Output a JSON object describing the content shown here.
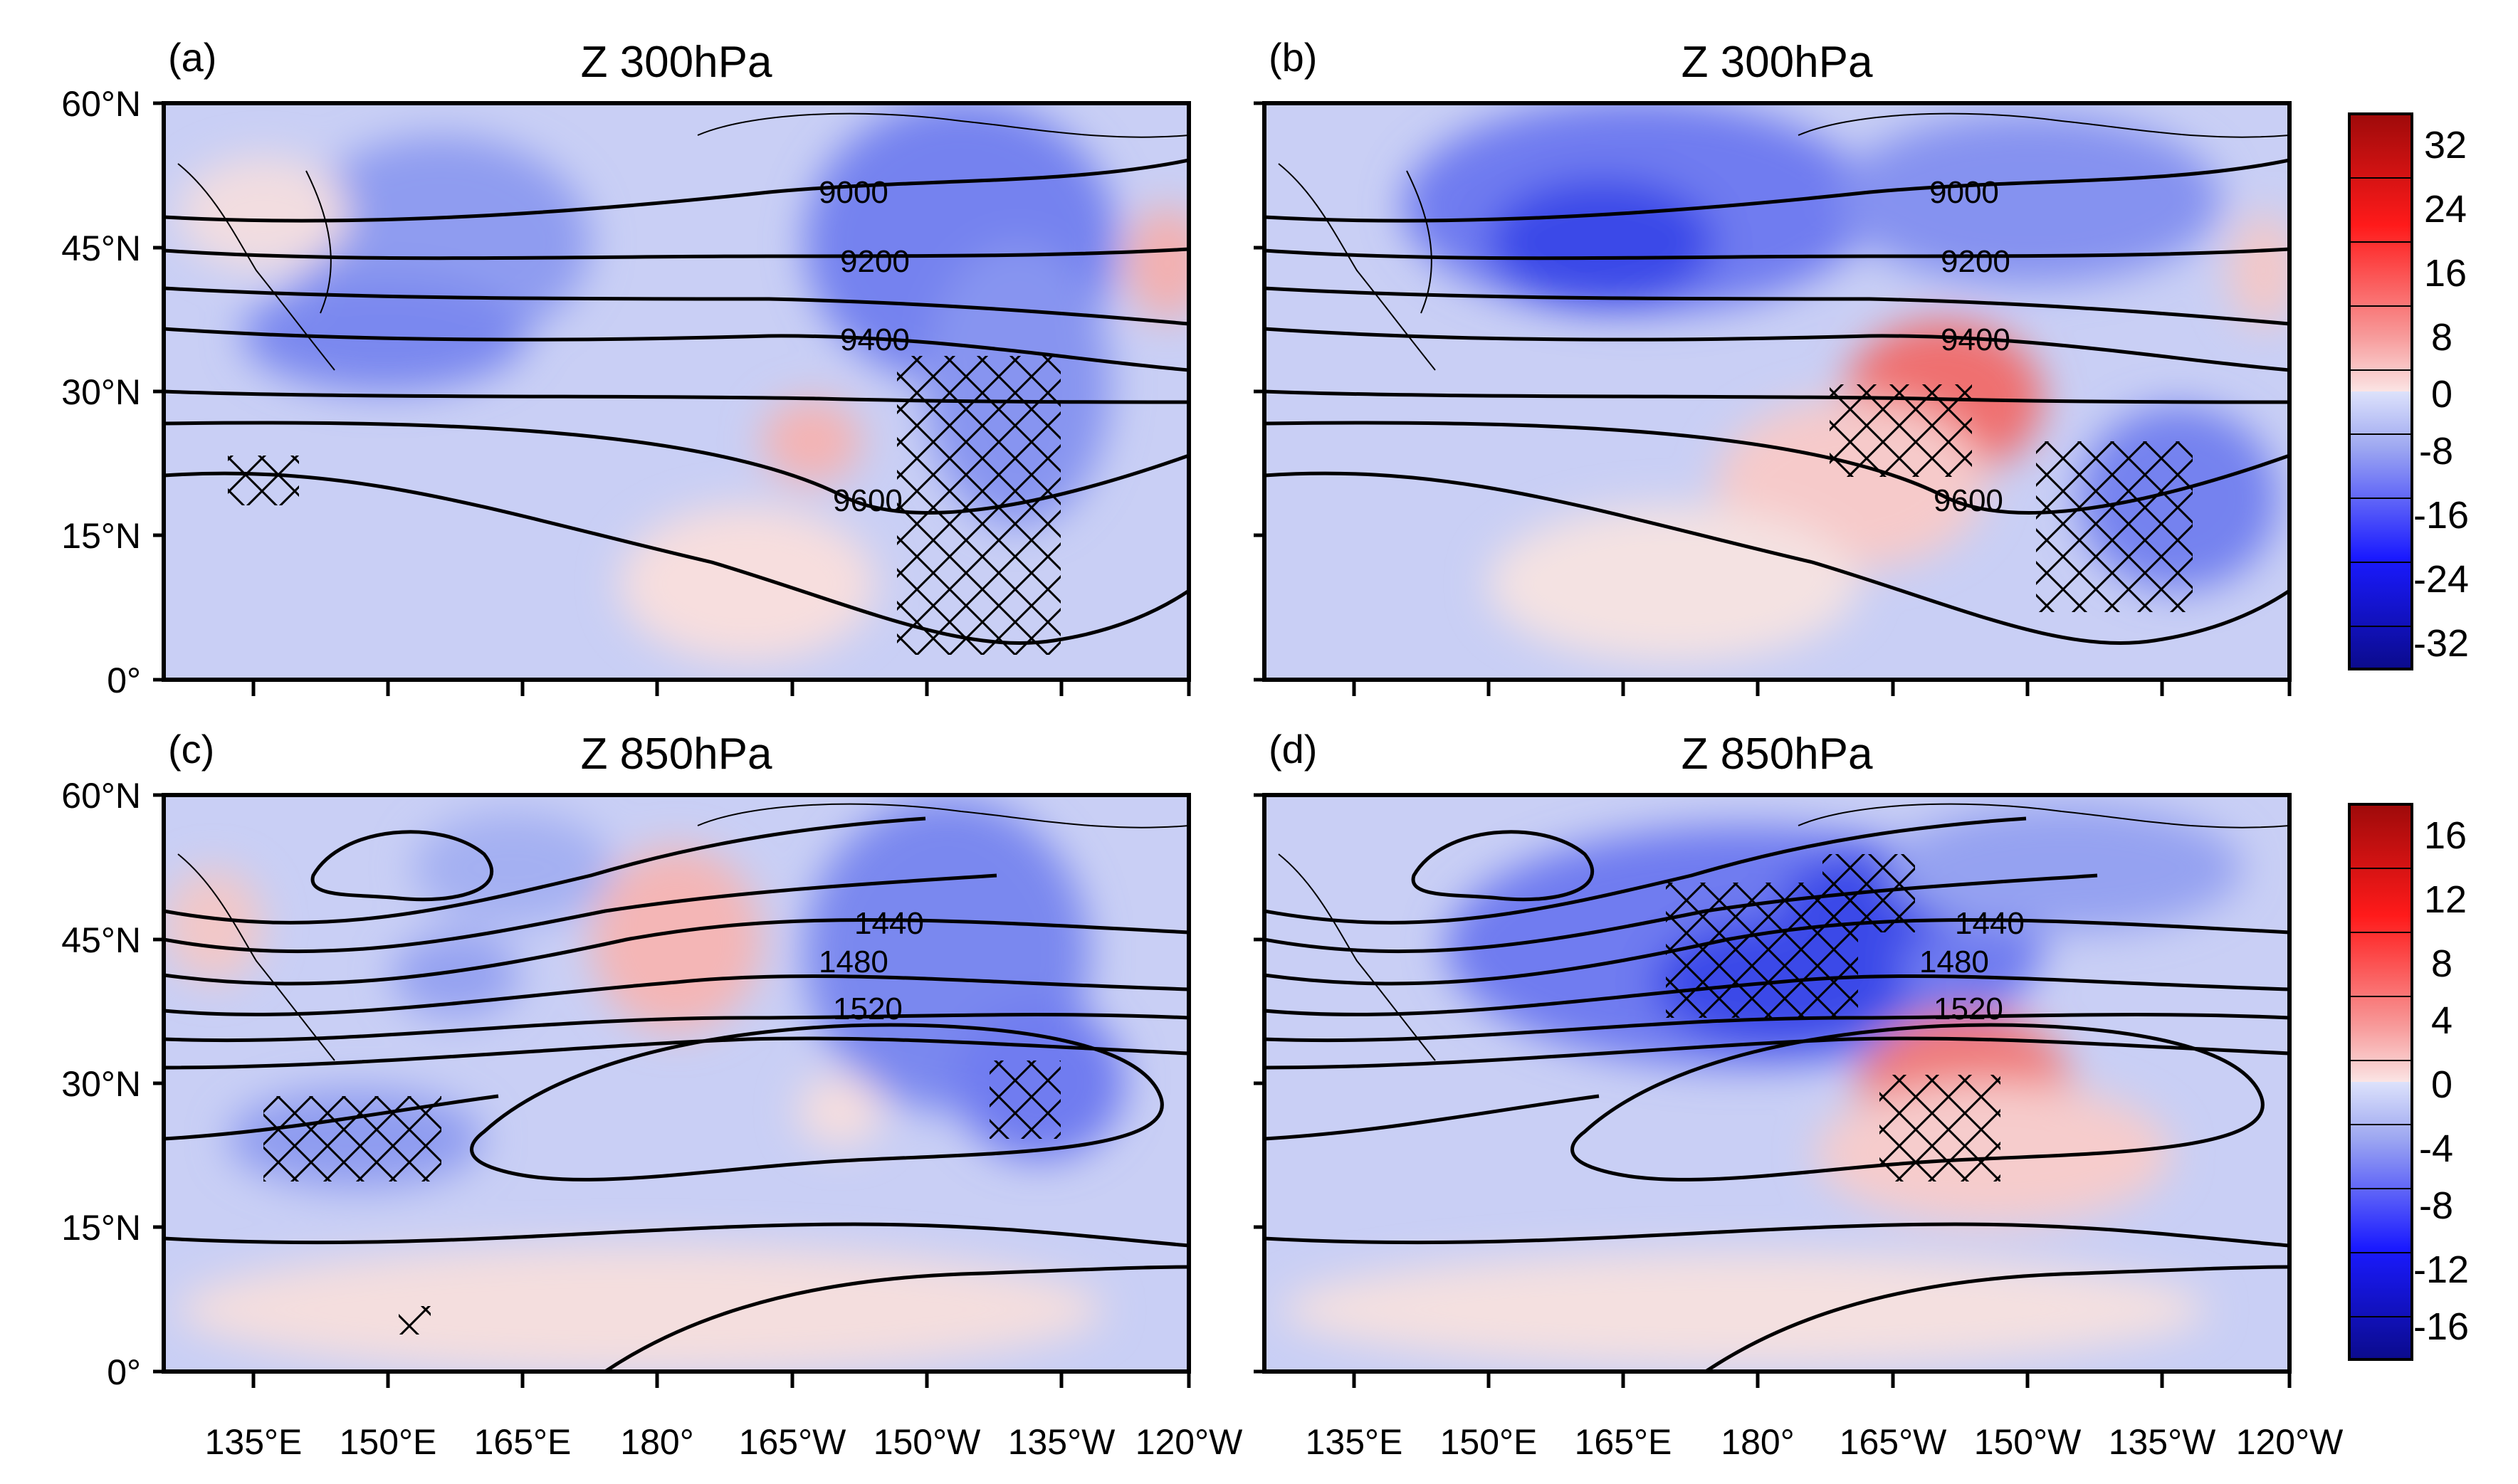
{
  "panels": [
    {
      "label": "(a)",
      "title": "Z 300hPa",
      "contours": [
        "9000",
        "9200",
        "9400",
        "9600"
      ]
    },
    {
      "label": "(b)",
      "title": "Z 300hPa",
      "contours": [
        "9000",
        "9200",
        "9400",
        "9600"
      ]
    },
    {
      "label": "(c)",
      "title": "Z 850hPa",
      "contours": [
        "1440",
        "1480",
        "1520"
      ]
    },
    {
      "label": "(d)",
      "title": "Z 850hPa",
      "contours": [
        "1440",
        "1480",
        "1520"
      ]
    }
  ],
  "lat_ticks": [
    "60°N",
    "45°N",
    "30°N",
    "15°N",
    "0°"
  ],
  "lon_ticks": [
    "135°E",
    "150°E",
    "165°E",
    "180°",
    "165°W",
    "150°W",
    "135°W",
    "120°W"
  ],
  "colorbar_top": {
    "labels": [
      "32",
      "24",
      "16",
      "8",
      "0",
      "-8",
      "-16",
      "-24",
      "-32"
    ]
  },
  "colorbar_bottom": {
    "labels": [
      "16",
      "12",
      "8",
      "4",
      "0",
      "-4",
      "-8",
      "-12",
      "-16"
    ]
  },
  "colors": {
    "base": "#c9cff5",
    "neg_light": "#a4b0f2",
    "neg_mid": "#6f7cf0",
    "neg_strong": "#3a4ae8",
    "pos_light": "#fadcdc",
    "pos_mid": "#f4a0a0",
    "pos_strong": "#ef7070"
  }
}
